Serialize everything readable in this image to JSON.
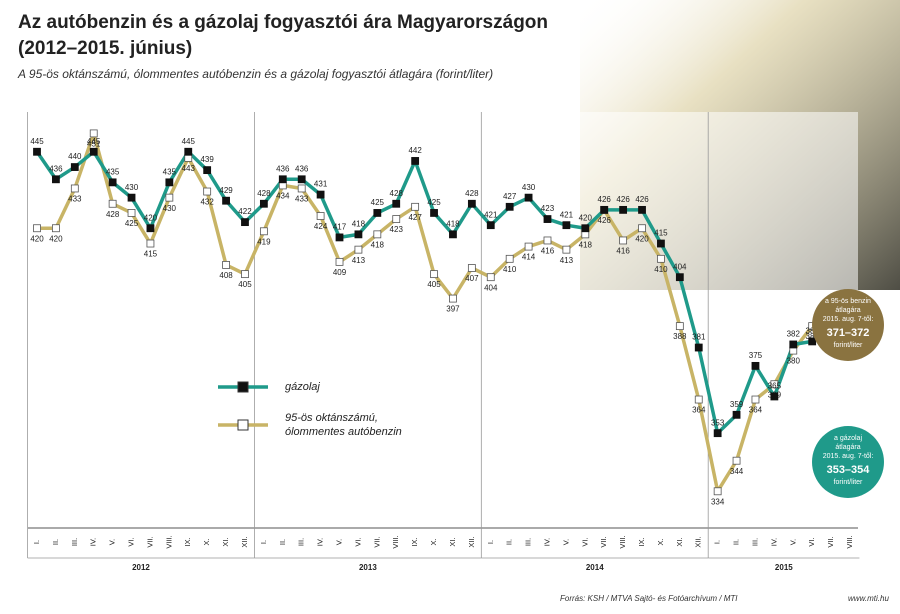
{
  "chart_data": {
    "type": "line",
    "title": "Az autóbenzin és a gázolaj fogyasztói ára Magyarországon",
    "title_line2": "(2012–2015. június)",
    "subtitle": "A 95-ös oktánszámú, ólommentes autóbenzin és a gázolaj fogyasztói átlagára (forint/liter)",
    "categories": [
      "I.",
      "II.",
      "III.",
      "IV.",
      "V.",
      "VI.",
      "VII.",
      "VIII.",
      "IX.",
      "X.",
      "XI.",
      "XII.",
      "I.",
      "II.",
      "III.",
      "IV.",
      "V.",
      "VI.",
      "VII.",
      "VIII.",
      "IX.",
      "X.",
      "XI.",
      "XII.",
      "I.",
      "II.",
      "III.",
      "IV.",
      "V.",
      "VI.",
      "VII.",
      "VIII.",
      "IX.",
      "X.",
      "XI.",
      "XII.",
      "I.",
      "II.",
      "III.",
      "IV.",
      "V.",
      "VI.",
      "VII.",
      "VIII."
    ],
    "years": [
      {
        "label": "2012",
        "start": 0,
        "count": 12
      },
      {
        "label": "2013",
        "start": 12,
        "count": 12
      },
      {
        "label": "2014",
        "start": 24,
        "count": 12
      },
      {
        "label": "2015",
        "start": 36,
        "count": 8
      }
    ],
    "ylim": [
      322,
      458
    ],
    "series": [
      {
        "name": "gázolaj",
        "color": "#1f9a8a",
        "marker_fill": "#111111",
        "values": [
          445,
          436,
          440,
          445,
          435,
          430,
          420,
          435,
          445,
          439,
          429,
          422,
          428,
          436,
          436,
          431,
          417,
          418,
          425,
          428,
          442,
          425,
          418,
          428,
          421,
          427,
          430,
          423,
          421,
          420,
          426,
          426,
          426,
          415,
          404,
          381,
          353,
          359,
          375,
          365,
          382,
          383,
          null,
          null
        ]
      },
      {
        "name_lines": [
          "95-ös oktánszámú,",
          "ólommentes autóbenzin"
        ],
        "color": "#c8b466",
        "marker_fill": "#ffffff",
        "values": [
          420,
          420,
          433,
          451,
          428,
          425,
          415,
          430,
          443,
          432,
          408,
          405,
          419,
          434,
          433,
          424,
          409,
          413,
          418,
          423,
          427,
          405,
          397,
          407,
          404,
          410,
          414,
          416,
          413,
          418,
          426,
          416,
          420,
          410,
          388,
          364,
          334,
          344,
          364,
          369,
          380,
          388,
          null,
          null
        ]
      }
    ],
    "callouts": [
      {
        "lines": [
          "a 95-ös benzin",
          "átlagára",
          "2015. aug. 7-től:"
        ],
        "value": "371–372",
        "unit": "forint/liter",
        "color": "#8a7340"
      },
      {
        "lines": [
          "a gázolaj",
          "átlagára",
          "2015. aug. 7-től:"
        ],
        "value": "353–354",
        "unit": "forint/liter",
        "color": "#1f9a8a"
      }
    ],
    "source": "Forrás: KSH / MTVA Sajtó- és Fotóarchívum / MTI",
    "website": "www.mti.hu"
  }
}
